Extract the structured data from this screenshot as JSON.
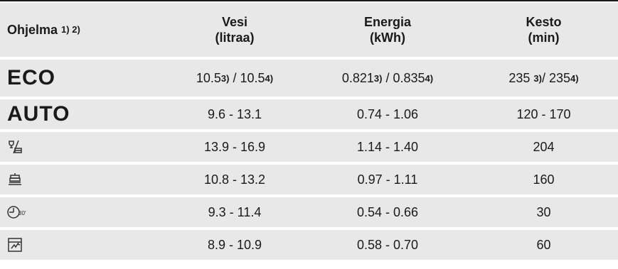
{
  "header": {
    "program": "Ohjelma",
    "program_sup": "1) 2)",
    "water_l1": "Vesi",
    "water_l2": "(litraa)",
    "energy_l1": "Energia",
    "energy_l2": "(kWh)",
    "duration_l1": "Kesto",
    "duration_l2": "(min)"
  },
  "rows": [
    {
      "program": "ECO",
      "water": "10.5",
      "water_sup": "3)",
      "water_sep": " / ",
      "water_b": "10.5",
      "water_b_sup": "4)",
      "energy": "0.821",
      "energy_sup": "3)",
      "energy_sep": " / ",
      "energy_b": "0.835",
      "energy_b_sup": "4)",
      "duration": "235 ",
      "duration_sup": "3)",
      "duration_sep": "/ ",
      "duration_b": "235",
      "duration_b_sup": "4)"
    },
    {
      "program": "AUTO",
      "water": "9.6 - 13.1",
      "energy": "0.74 - 1.06",
      "duration": "120 - 170"
    },
    {
      "icon": "glass-plate-icon",
      "water": "13.9 - 16.9",
      "energy": "1.14 - 1.40",
      "duration": "204"
    },
    {
      "icon": "stacked-dishes-icon",
      "water": "10.8 - 13.2",
      "energy": "0.97 - 1.11",
      "duration": "160"
    },
    {
      "icon": "timer-30-icon",
      "icon_text": "30′",
      "water": "9.3 - 11.4",
      "energy": "0.54 - 0.66",
      "duration": "30"
    },
    {
      "icon": "machine-care-icon",
      "water": "8.9 - 10.9",
      "energy": "0.58 - 0.70",
      "duration": "60"
    }
  ]
}
